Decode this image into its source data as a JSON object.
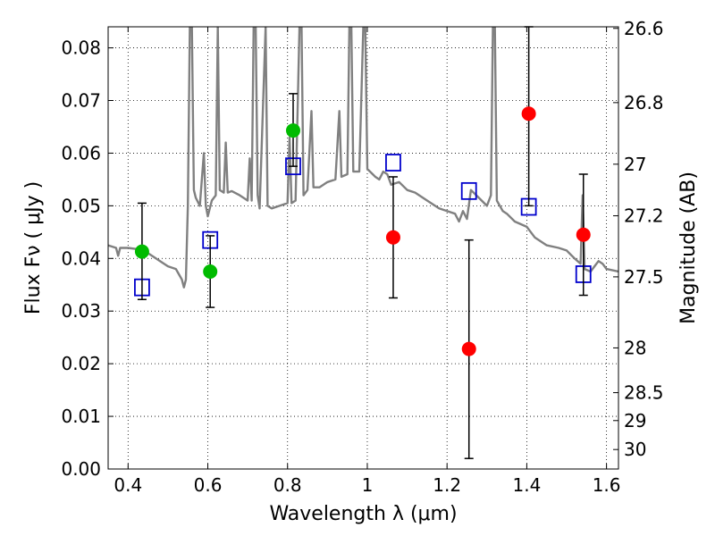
{
  "chart_data": {
    "type": "scatter",
    "xlabel": "Wavelength  λ (μm)",
    "ylabel": "Flux  Fν  ( μJy )",
    "y2label": "Magnitude (AB)",
    "xlim": [
      0.35,
      1.63
    ],
    "ylim": [
      0.0,
      0.084
    ],
    "grid": true,
    "x_ticks": [
      0.4,
      0.6,
      0.8,
      1.0,
      1.2,
      1.4,
      1.6
    ],
    "x_tick_labels": [
      "0.4",
      "0.6",
      "0.8",
      "1",
      "1.2",
      "1.4",
      "1.6"
    ],
    "y_ticks": [
      0.0,
      0.01,
      0.02,
      0.03,
      0.04,
      0.05,
      0.06,
      0.07,
      0.08
    ],
    "y_tick_labels": [
      "0.00",
      "0.01",
      "0.02",
      "0.03",
      "0.04",
      "0.05",
      "0.06",
      "0.07",
      "0.08"
    ],
    "y2_ticks": [
      {
        "label": "26.6",
        "flux": 0.0837
      },
      {
        "label": "26.8",
        "flux": 0.0696
      },
      {
        "label": "27",
        "flux": 0.0579
      },
      {
        "label": "27.2",
        "flux": 0.0481
      },
      {
        "label": "27.5",
        "flux": 0.0365
      },
      {
        "label": "28",
        "flux": 0.023
      },
      {
        "label": "28.5",
        "flux": 0.0145
      },
      {
        "label": "29",
        "flux": 0.0092
      },
      {
        "label": "30",
        "flux": 0.0037
      }
    ],
    "series": [
      {
        "marker": "square",
        "color": "#0000cc",
        "points": [
          {
            "x": 0.435,
            "y": 0.0345
          },
          {
            "x": 0.606,
            "y": 0.0435
          },
          {
            "x": 0.814,
            "y": 0.0575
          },
          {
            "x": 1.065,
            "y": 0.0582
          },
          {
            "x": 1.255,
            "y": 0.0528
          },
          {
            "x": 1.405,
            "y": 0.0498
          },
          {
            "x": 1.542,
            "y": 0.037
          }
        ]
      },
      {
        "marker": "circle",
        "color": "#00bb00",
        "points": [
          {
            "x": 0.435,
            "y": 0.0413,
            "ylo": 0.0322,
            "yhi": 0.0505
          },
          {
            "x": 0.606,
            "y": 0.0375,
            "ylo": 0.0307,
            "yhi": 0.0443
          },
          {
            "x": 0.814,
            "y": 0.0643,
            "ylo": 0.0575,
            "yhi": 0.0713
          }
        ]
      },
      {
        "marker": "circle",
        "color": "#ff0000",
        "points": [
          {
            "x": 1.065,
            "y": 0.044,
            "ylo": 0.0325,
            "yhi": 0.0555
          },
          {
            "x": 1.255,
            "y": 0.0228,
            "ylo": 0.002,
            "yhi": 0.0435
          },
          {
            "x": 1.405,
            "y": 0.0675,
            "ylo": 0.05,
            "yhi": 0.084
          },
          {
            "x": 1.542,
            "y": 0.0445,
            "ylo": 0.033,
            "yhi": 0.056
          }
        ]
      }
    ],
    "model_spectrum": {
      "color": "#808080",
      "points": [
        [
          0.35,
          0.0425
        ],
        [
          0.37,
          0.042
        ],
        [
          0.375,
          0.0405
        ],
        [
          0.38,
          0.042
        ],
        [
          0.4,
          0.042
        ],
        [
          0.42,
          0.0418
        ],
        [
          0.45,
          0.041
        ],
        [
          0.48,
          0.0395
        ],
        [
          0.5,
          0.0385
        ],
        [
          0.52,
          0.038
        ],
        [
          0.535,
          0.036
        ],
        [
          0.54,
          0.0345
        ],
        [
          0.545,
          0.036
        ],
        [
          0.55,
          0.05
        ],
        [
          0.555,
          0.084
        ],
        [
          0.56,
          0.084
        ],
        [
          0.565,
          0.053
        ],
        [
          0.57,
          0.0515
        ],
        [
          0.58,
          0.05
        ],
        [
          0.59,
          0.06
        ],
        [
          0.595,
          0.05
        ],
        [
          0.6,
          0.048
        ],
        [
          0.61,
          0.051
        ],
        [
          0.62,
          0.052
        ],
        [
          0.625,
          0.084
        ],
        [
          0.63,
          0.053
        ],
        [
          0.64,
          0.0525
        ],
        [
          0.645,
          0.062
        ],
        [
          0.65,
          0.0525
        ],
        [
          0.66,
          0.0528
        ],
        [
          0.68,
          0.052
        ],
        [
          0.7,
          0.051
        ],
        [
          0.705,
          0.059
        ],
        [
          0.71,
          0.051
        ],
        [
          0.715,
          0.084
        ],
        [
          0.72,
          0.084
        ],
        [
          0.725,
          0.052
        ],
        [
          0.73,
          0.0495
        ],
        [
          0.745,
          0.084
        ],
        [
          0.75,
          0.05
        ],
        [
          0.76,
          0.0495
        ],
        [
          0.78,
          0.05
        ],
        [
          0.8,
          0.0505
        ],
        [
          0.805,
          0.063
        ],
        [
          0.81,
          0.0505
        ],
        [
          0.82,
          0.051
        ],
        [
          0.83,
          0.084
        ],
        [
          0.835,
          0.084
        ],
        [
          0.84,
          0.052
        ],
        [
          0.85,
          0.053
        ],
        [
          0.86,
          0.068
        ],
        [
          0.865,
          0.0535
        ],
        [
          0.88,
          0.0535
        ],
        [
          0.9,
          0.0545
        ],
        [
          0.92,
          0.055
        ],
        [
          0.93,
          0.068
        ],
        [
          0.935,
          0.0555
        ],
        [
          0.95,
          0.056
        ],
        [
          0.955,
          0.084
        ],
        [
          0.96,
          0.084
        ],
        [
          0.965,
          0.0565
        ],
        [
          0.98,
          0.0565
        ],
        [
          0.99,
          0.084
        ],
        [
          0.995,
          0.084
        ],
        [
          1.0,
          0.057
        ],
        [
          1.02,
          0.0555
        ],
        [
          1.03,
          0.055
        ],
        [
          1.04,
          0.0565
        ],
        [
          1.05,
          0.056
        ],
        [
          1.06,
          0.054
        ],
        [
          1.08,
          0.0545
        ],
        [
          1.1,
          0.053
        ],
        [
          1.12,
          0.0525
        ],
        [
          1.15,
          0.051
        ],
        [
          1.18,
          0.0495
        ],
        [
          1.2,
          0.049
        ],
        [
          1.22,
          0.0485
        ],
        [
          1.23,
          0.047
        ],
        [
          1.24,
          0.049
        ],
        [
          1.25,
          0.0475
        ],
        [
          1.26,
          0.053
        ],
        [
          1.28,
          0.0515
        ],
        [
          1.3,
          0.05
        ],
        [
          1.31,
          0.052
        ],
        [
          1.315,
          0.084
        ],
        [
          1.32,
          0.084
        ],
        [
          1.325,
          0.051
        ],
        [
          1.34,
          0.049
        ],
        [
          1.35,
          0.0485
        ],
        [
          1.37,
          0.047
        ],
        [
          1.4,
          0.046
        ],
        [
          1.42,
          0.044
        ],
        [
          1.45,
          0.0425
        ],
        [
          1.48,
          0.042
        ],
        [
          1.5,
          0.0415
        ],
        [
          1.52,
          0.04
        ],
        [
          1.535,
          0.039
        ],
        [
          1.54,
          0.052
        ],
        [
          1.545,
          0.038
        ],
        [
          1.56,
          0.0375
        ],
        [
          1.57,
          0.0385
        ],
        [
          1.58,
          0.0395
        ],
        [
          1.59,
          0.039
        ],
        [
          1.6,
          0.038
        ],
        [
          1.63,
          0.0375
        ]
      ]
    }
  }
}
